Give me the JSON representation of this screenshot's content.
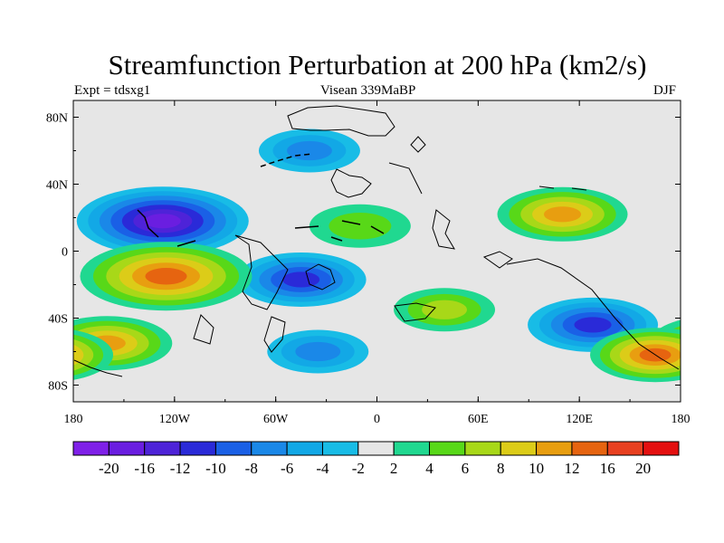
{
  "chart_data": {
    "type": "heatmap",
    "title": "Streamfunction Perturbation at 200 hPa (km2/s)",
    "subtitle_left": "Expt = tdsxg1",
    "subtitle_center": "Visean 339MaBP",
    "subtitle_right": "DJF",
    "xlim": [
      -180,
      180
    ],
    "ylim": [
      -90,
      90
    ],
    "x_ticks": [
      {
        "value": -180,
        "label": "180"
      },
      {
        "value": -120,
        "label": "120W"
      },
      {
        "value": -60,
        "label": "60W"
      },
      {
        "value": 0,
        "label": "0"
      },
      {
        "value": 60,
        "label": "60E"
      },
      {
        "value": 120,
        "label": "120E"
      },
      {
        "value": 180,
        "label": "180"
      }
    ],
    "y_ticks": [
      {
        "value": 80,
        "label": "80N"
      },
      {
        "value": 40,
        "label": "40N"
      },
      {
        "value": 0,
        "label": "0"
      },
      {
        "value": -40,
        "label": "40S"
      },
      {
        "value": -80,
        "label": "80S"
      }
    ],
    "colorbar": {
      "levels": [
        -20,
        -16,
        -12,
        -10,
        -8,
        -6,
        -4,
        -2,
        2,
        4,
        6,
        8,
        10,
        12,
        16,
        20
      ],
      "labels": [
        "-20",
        "-16",
        "-12",
        "-10",
        "-8",
        "-6",
        "-4",
        "-2",
        "2",
        "4",
        "6",
        "8",
        "10",
        "12",
        "16",
        "20"
      ],
      "colors": [
        "#7f20e8",
        "#6a1ee0",
        "#4e23d8",
        "#2a2ad8",
        "#1a60e6",
        "#1a88e8",
        "#12a8e6",
        "#18bce6",
        "#e6e6e6",
        "#20d890",
        "#58d818",
        "#a8d818",
        "#dccc18",
        "#e89e10",
        "#e66410",
        "#e84020",
        "#e41010"
      ]
    },
    "features": [
      {
        "name": "low-north-pacific",
        "lon": -127,
        "lat": 18,
        "peak": -19
      },
      {
        "name": "low-south-atlantic",
        "lon": -45,
        "lat": -17,
        "peak": -10
      },
      {
        "name": "low-north-atlantic",
        "lon": -40,
        "lat": 60,
        "peak": -6
      },
      {
        "name": "low-australia",
        "lon": 128,
        "lat": -44,
        "peak": -10
      },
      {
        "name": "low-southern-ocean",
        "lon": -35,
        "lat": -60,
        "peak": -6
      },
      {
        "name": "high-south-pacific",
        "lon": -125,
        "lat": -15,
        "peak": 14
      },
      {
        "name": "high-west-pacific",
        "lon": 110,
        "lat": 22,
        "peak": 10
      },
      {
        "name": "high-far-south-pacific",
        "lon": -160,
        "lat": -55,
        "peak": 10
      },
      {
        "name": "high-southwest-pacific",
        "lon": 165,
        "lat": -62,
        "peak": 12
      },
      {
        "name": "high-south-indian",
        "lon": 40,
        "lat": -35,
        "peak": 7
      },
      {
        "name": "high-tropical-atlantic",
        "lon": -10,
        "lat": 15,
        "peak": 5
      }
    ]
  }
}
